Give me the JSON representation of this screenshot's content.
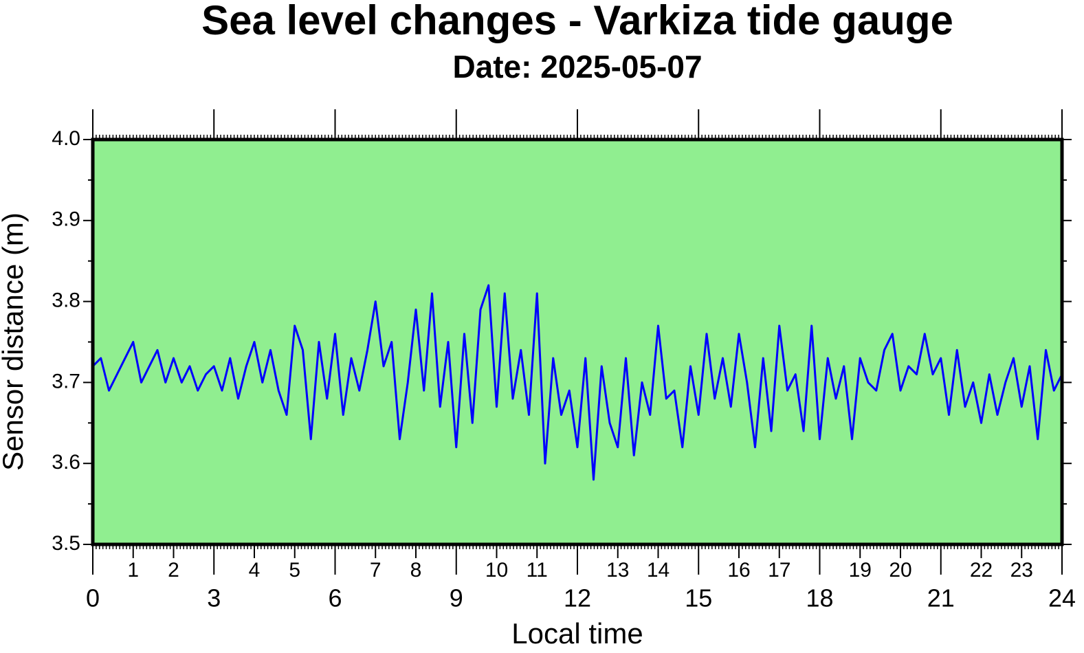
{
  "chart_data": {
    "type": "line",
    "title": "Sea level changes - Varkiza tide gauge",
    "subtitle": "Date: 2025-05-07",
    "xlabel": "Local time",
    "ylabel": "Sensor distance (m)",
    "xlim": [
      0,
      24
    ],
    "xticks": [
      0,
      3,
      6,
      9,
      12,
      15,
      18,
      21,
      24
    ],
    "xticks2": [
      1,
      2,
      4,
      5,
      7,
      8,
      10,
      11,
      13,
      14,
      16,
      17,
      19,
      20,
      22,
      23
    ],
    "ylim": [
      3.5,
      4.0
    ],
    "yticks": [
      {
        "value": 3.5,
        "label": "3.5"
      },
      {
        "value": 3.6,
        "label": "3.6"
      },
      {
        "value": 3.7,
        "label": "3.7"
      },
      {
        "value": 3.8,
        "label": "3.8"
      },
      {
        "value": 3.9,
        "label": "3.9"
      },
      {
        "value": 4.0,
        "label": "4.0"
      }
    ],
    "background": "#90ee90",
    "series": [
      {
        "name": "Sea level",
        "color": "#0000ff",
        "x": [
          0,
          0.2,
          0.4,
          0.6,
          0.8,
          1,
          1.2,
          1.4,
          1.6,
          1.8,
          2,
          2.2,
          2.4,
          2.6,
          2.8,
          3,
          3.2,
          3.4,
          3.6,
          3.8,
          4,
          4.2,
          4.4,
          4.6,
          4.8,
          5,
          5.2,
          5.4,
          5.6,
          5.8,
          6,
          6.2,
          6.4,
          6.6,
          6.8,
          7,
          7.2,
          7.4,
          7.6,
          7.8,
          8,
          8.2,
          8.4,
          8.6,
          8.8,
          9,
          9.2,
          9.4,
          9.6,
          9.8,
          10,
          10.2,
          10.4,
          10.6,
          10.8,
          11,
          11.2,
          11.4,
          11.6,
          11.8,
          12,
          12.2,
          12.4,
          12.6,
          12.8,
          13,
          13.2,
          13.4,
          13.6,
          13.8,
          14,
          14.2,
          14.4,
          14.6,
          14.8,
          15,
          15.2,
          15.4,
          15.6,
          15.8,
          16,
          16.2,
          16.4,
          16.6,
          16.8,
          17,
          17.2,
          17.4,
          17.6,
          17.8,
          18,
          18.2,
          18.4,
          18.6,
          18.8,
          19,
          19.2,
          19.4,
          19.6,
          19.8,
          20,
          20.2,
          20.4,
          20.6,
          20.8,
          21,
          21.2,
          21.4,
          21.6,
          21.8,
          22,
          22.2,
          22.4,
          22.6,
          22.8,
          23,
          23.2,
          23.4,
          23.6,
          23.8,
          24
        ],
        "values": [
          3.72,
          3.73,
          3.69,
          3.71,
          3.73,
          3.75,
          3.7,
          3.72,
          3.74,
          3.7,
          3.73,
          3.7,
          3.72,
          3.69,
          3.71,
          3.72,
          3.69,
          3.73,
          3.68,
          3.72,
          3.75,
          3.7,
          3.74,
          3.69,
          3.66,
          3.77,
          3.74,
          3.63,
          3.75,
          3.68,
          3.76,
          3.66,
          3.73,
          3.69,
          3.74,
          3.8,
          3.72,
          3.75,
          3.63,
          3.7,
          3.79,
          3.69,
          3.81,
          3.67,
          3.75,
          3.62,
          3.76,
          3.65,
          3.79,
          3.82,
          3.67,
          3.81,
          3.68,
          3.74,
          3.66,
          3.81,
          3.6,
          3.73,
          3.66,
          3.69,
          3.62,
          3.73,
          3.58,
          3.72,
          3.65,
          3.62,
          3.73,
          3.61,
          3.7,
          3.66,
          3.77,
          3.68,
          3.69,
          3.62,
          3.72,
          3.66,
          3.76,
          3.68,
          3.73,
          3.67,
          3.76,
          3.7,
          3.62,
          3.73,
          3.64,
          3.77,
          3.69,
          3.71,
          3.64,
          3.77,
          3.63,
          3.73,
          3.68,
          3.72,
          3.63,
          3.73,
          3.7,
          3.69,
          3.74,
          3.76,
          3.69,
          3.72,
          3.71,
          3.76,
          3.71,
          3.73,
          3.66,
          3.74,
          3.67,
          3.7,
          3.65,
          3.71,
          3.66,
          3.7,
          3.73,
          3.67,
          3.72,
          3.63,
          3.74,
          3.69,
          3.71
        ]
      }
    ]
  }
}
